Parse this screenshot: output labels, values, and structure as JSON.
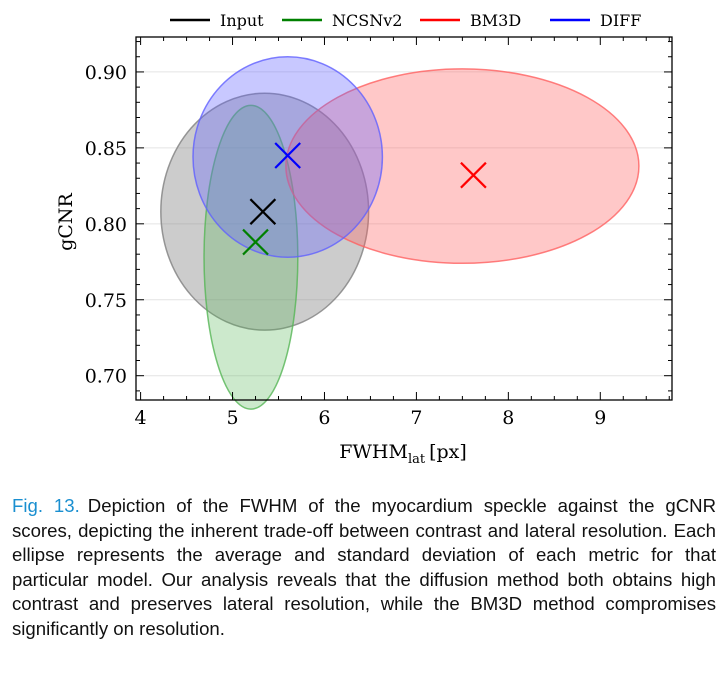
{
  "chart_data": {
    "type": "scatter",
    "xlabel_main": "FWHM",
    "xlabel_sub": "lat",
    "xlabel_unit": "[px]",
    "ylabel": "gCNR",
    "xlim": [
      3.95,
      9.78
    ],
    "ylim": [
      0.684,
      0.923
    ],
    "x_ticks": [
      "4",
      "5",
      "6",
      "7",
      "8",
      "9"
    ],
    "y_ticks": [
      "0.70",
      "0.75",
      "0.80",
      "0.85",
      "0.90"
    ],
    "grid": "horizontal",
    "legend_position": "top",
    "series": [
      {
        "name": "Input",
        "color": "#000000",
        "fill": "#808080",
        "fill_opacity": 0.4,
        "mean_x": 5.33,
        "mean_y": 0.808,
        "std_x": 1.13,
        "std_y": 0.078,
        "cx": 5.35,
        "cy": 0.808
      },
      {
        "name": "NCSNv2",
        "color": "#008000",
        "fill": "#55b555",
        "fill_opacity": 0.3,
        "mean_x": 5.25,
        "mean_y": 0.788,
        "std_x": 0.51,
        "std_y": 0.1,
        "cx": 5.2,
        "cy": 0.778
      },
      {
        "name": "BM3D",
        "color": "#ff0000",
        "fill": "#ff6060",
        "fill_opacity": 0.35,
        "mean_x": 7.62,
        "mean_y": 0.832,
        "std_x": 1.92,
        "std_y": 0.064,
        "cx": 7.5,
        "cy": 0.838
      },
      {
        "name": "DIFF",
        "color": "#0000ff",
        "fill": "#6060ff",
        "fill_opacity": 0.35,
        "mean_x": 5.6,
        "mean_y": 0.845,
        "std_x": 1.03,
        "std_y": 0.066,
        "cx": 5.6,
        "cy": 0.844
      }
    ]
  },
  "caption": {
    "label": "Fig. 13.",
    "text": "Depiction of the FWHM of the myocardium speckle against the gCNR scores, depicting the inherent trade-off between contrast and lateral resolution. Each ellipse represents the average and standard deviation of each metric for that particular model. Our analysis reveals that the diffusion method both obtains high contrast and preserves lateral resolution, while the BM3D method compromises significantly on resolution."
  }
}
